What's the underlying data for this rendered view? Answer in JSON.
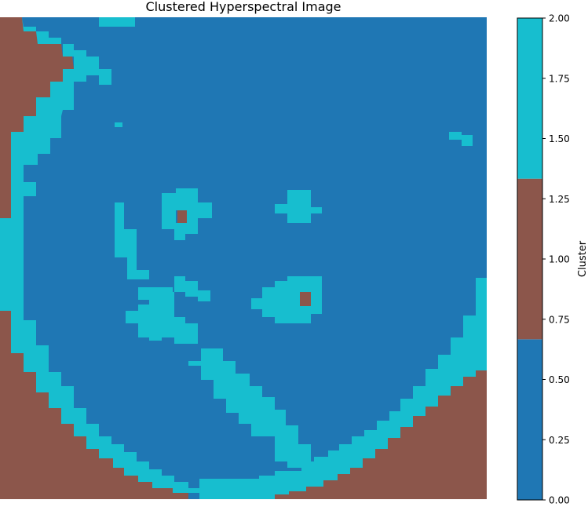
{
  "chart_data": {
    "type": "heatmap",
    "title": "Clustered Hyperspectral Image",
    "colorbar": {
      "label": "Cluster",
      "range": [
        0,
        2
      ],
      "ticks": [
        "0.00",
        "0.25",
        "0.50",
        "0.75",
        "1.00",
        "1.25",
        "1.50",
        "1.75",
        "2.00"
      ],
      "tick_values": [
        0,
        0.25,
        0.5,
        0.75,
        1,
        1.25,
        1.5,
        1.75,
        2
      ]
    },
    "clusters": [
      {
        "value": 0,
        "color": "#1f77b4"
      },
      {
        "value": 1,
        "color": "#8c564b"
      },
      {
        "value": 2,
        "color": "#17becf"
      }
    ],
    "axes_visible": false
  }
}
